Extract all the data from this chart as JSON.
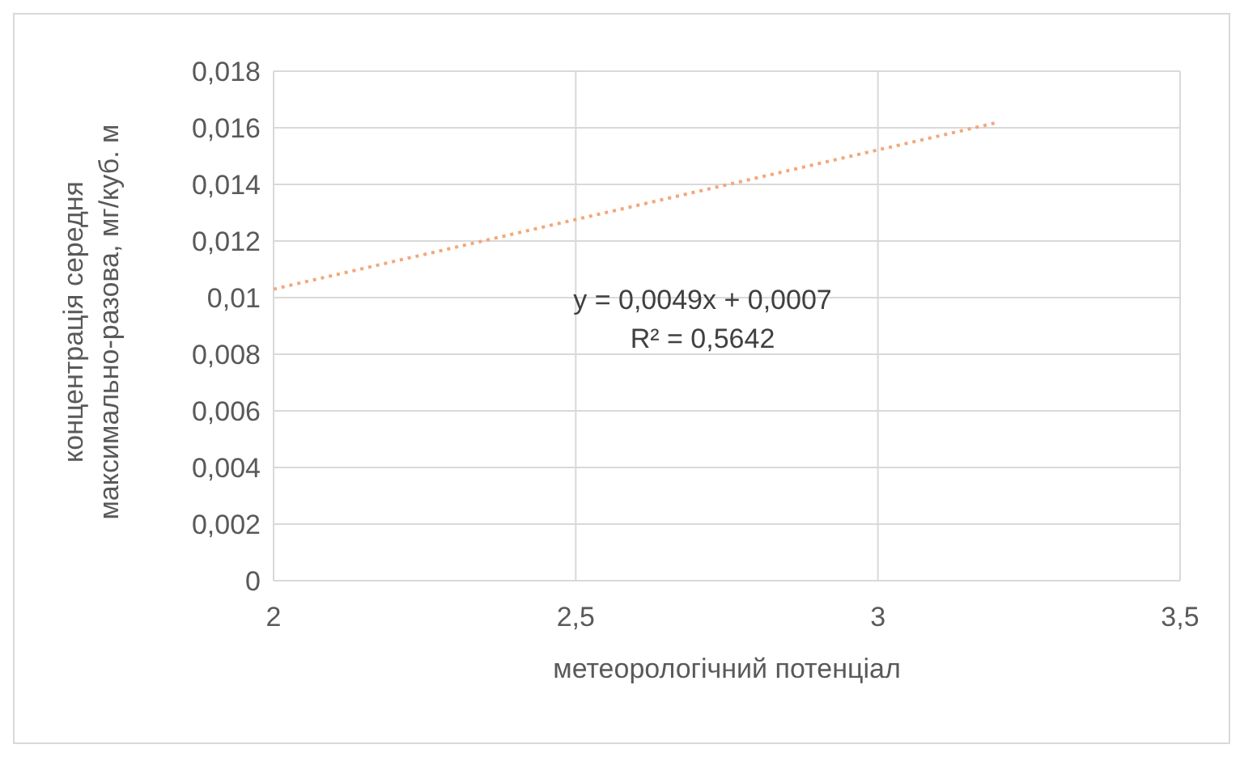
{
  "chart_data": {
    "type": "line",
    "xlabel": "метеорологічний потенціал",
    "ylabel": "концентрація середня\nмаксимально-разова, мг/куб. м",
    "series": [
      {
        "color": "#f4a77a",
        "x": [
          2,
          3.2
        ],
        "values": [
          0.0103,
          0.0162
        ]
      }
    ],
    "line_style": "dotted",
    "marker": "none",
    "grid": true,
    "xlim": [
      2,
      3.5
    ],
    "xticks": [
      2,
      {
        "value": 2.5,
        "label": "2,5"
      },
      3,
      {
        "value": 3.5,
        "label": "3,5"
      }
    ],
    "ylim": [
      0,
      0.018
    ],
    "yticks": [
      0,
      {
        "value": 0.002,
        "label": "0,002"
      },
      {
        "value": 0.004,
        "label": "0,004"
      },
      {
        "value": 0.006,
        "label": "0,006"
      },
      {
        "value": 0.008,
        "label": "0,008"
      },
      {
        "value": 0.01,
        "label": "0,01"
      },
      {
        "value": 0.012,
        "label": "0,012"
      },
      {
        "value": 0.014,
        "label": "0,014"
      },
      {
        "value": 0.016,
        "label": "0,016"
      },
      {
        "value": 0.018,
        "label": "0,018"
      }
    ],
    "annotations": [
      "y = 0,0049x + 0,0007",
      "R² = 0,5642"
    ]
  }
}
